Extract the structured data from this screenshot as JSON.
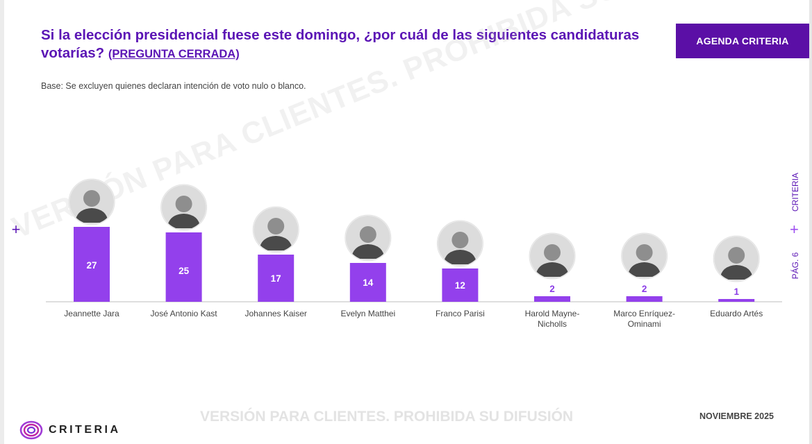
{
  "title": {
    "main": "Si la elección presidencial fuese este domingo, ¿por cuál de las siguientes candidaturas votarías?",
    "qualifier": "(PREGUNTA CERRADA)"
  },
  "badge": "AGENDA CRITERIA",
  "base_note": "Base: Se excluyen quienes declaran intención de voto nulo o blanco.",
  "side": {
    "brand": "CRITERIA",
    "page": "PÁG. 6"
  },
  "watermark": "VERSIÓN PARA CLIENTES. PROHIBIDA SU DIFUSIÓN",
  "date": "NOVIEMBRE 2025",
  "logo_text": "CRITERIA",
  "colors": {
    "accent": "#5b15b5",
    "bar": "#9340ec",
    "badge": "#5b0fa6"
  },
  "chart_data": {
    "type": "bar",
    "categories": [
      "Jeannette Jara",
      "José Antonio Kast",
      "Johannes Kaiser",
      "Evelyn Matthei",
      "Franco Parisi",
      "Harold Mayne-Nicholls",
      "Marco Enríquez-Ominami",
      "Eduardo Artés"
    ],
    "tick_lines": [
      [
        "Jeannette Jara"
      ],
      [
        "José Antonio Kast"
      ],
      [
        "Johannes Kaiser"
      ],
      [
        "Evelyn Matthei"
      ],
      [
        "Franco Parisi"
      ],
      [
        "Harold Mayne-",
        "Nicholls"
      ],
      [
        "Marco Enríquez-",
        "Ominami"
      ],
      [
        "Eduardo Artés"
      ]
    ],
    "values": [
      27,
      25,
      17,
      14,
      12,
      2,
      2,
      1
    ],
    "ylim": [
      0,
      27
    ],
    "grid": false,
    "legend": "none",
    "data_labels": "inside-top for large bars, above for small bars"
  }
}
